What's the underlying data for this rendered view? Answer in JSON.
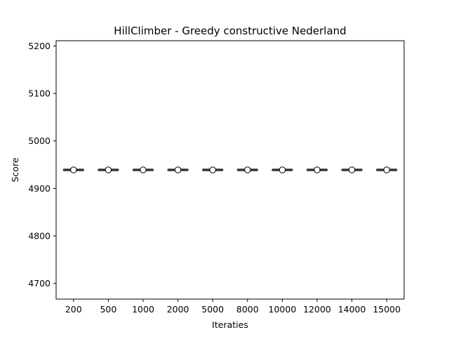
{
  "chart_data": {
    "type": "box",
    "title": "HillClimber - Greedy constructive Nederland",
    "xlabel": "Iteraties",
    "ylabel": "Score",
    "categories": [
      "200",
      "500",
      "1000",
      "2000",
      "5000",
      "8000",
      "10000",
      "12000",
      "14000",
      "15000"
    ],
    "values": [
      4939,
      4939,
      4939,
      4939,
      4939,
      4939,
      4939,
      4939,
      4939,
      4939
    ],
    "ylim": [
      4667,
      5211
    ],
    "yticks": [
      4700,
      4800,
      4900,
      5000,
      5100,
      5200
    ],
    "grid": false,
    "box_color": "#333333",
    "mean_marker_color": "#ffffff"
  }
}
